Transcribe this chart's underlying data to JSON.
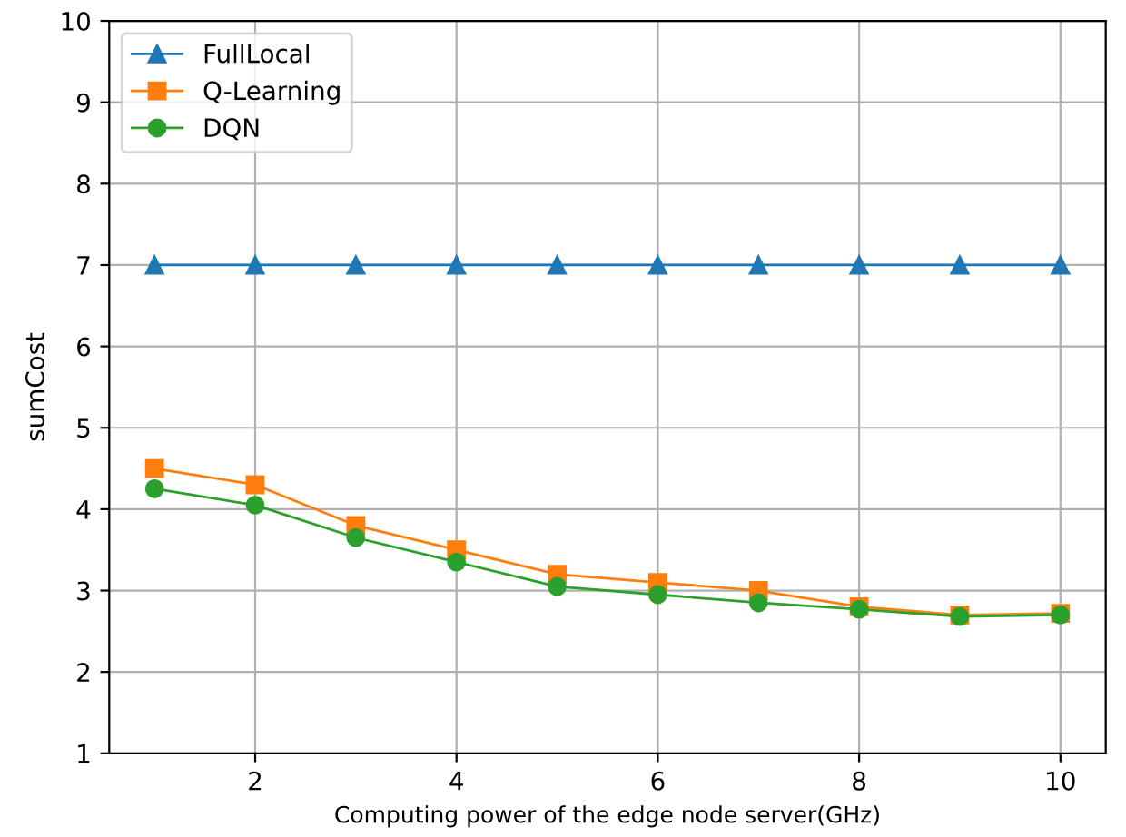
{
  "chart_data": {
    "type": "line",
    "xlabel": "Computing power of the edge node server(GHz)",
    "ylabel": "sumCost",
    "x": [
      1,
      2,
      3,
      4,
      5,
      6,
      7,
      8,
      9,
      10
    ],
    "series": [
      {
        "name": "FullLocal",
        "color": "#1f77b4",
        "marker": "triangle",
        "values": [
          7,
          7,
          7,
          7,
          7,
          7,
          7,
          7,
          7,
          7
        ]
      },
      {
        "name": "Q-Learning",
        "color": "#ff7f0e",
        "marker": "square",
        "values": [
          4.5,
          4.3,
          3.8,
          3.5,
          3.2,
          3.1,
          3.0,
          2.8,
          2.7,
          2.72
        ]
      },
      {
        "name": "DQN",
        "color": "#2ca02c",
        "marker": "circle",
        "values": [
          4.25,
          4.05,
          3.65,
          3.35,
          3.05,
          2.95,
          2.85,
          2.77,
          2.68,
          2.7
        ]
      }
    ],
    "xlim": [
      0.55,
      10.45
    ],
    "xticks": [
      2,
      4,
      6,
      8,
      10
    ],
    "ylim": [
      1,
      10
    ],
    "yticks": [
      1,
      2,
      3,
      4,
      5,
      6,
      7,
      8,
      9,
      10
    ],
    "grid": true,
    "legend": "top left",
    "line_style": "solid"
  }
}
